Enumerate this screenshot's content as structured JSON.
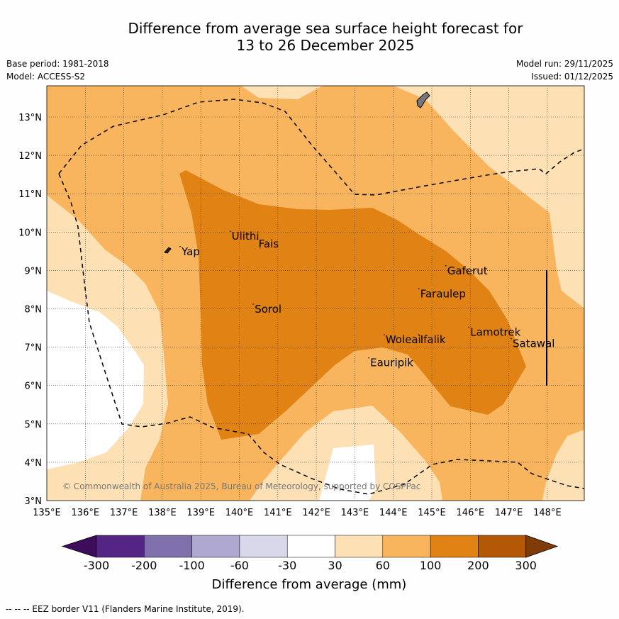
{
  "title": {
    "line1": "Difference from average sea surface height forecast for",
    "line2": "13 to 26 December 2025"
  },
  "meta": {
    "base_period": "Base period: 1981-2018",
    "model": "Model: ACCESS-S2",
    "model_run": "Model run: 29/11/2025",
    "issued": "Issued: 01/12/2025"
  },
  "map": {
    "lon_labels": [
      "135°E",
      "136°E",
      "137°E",
      "138°E",
      "139°E",
      "140°E",
      "141°E",
      "142°E",
      "143°E",
      "144°E",
      "145°E",
      "146°E",
      "147°E",
      "148°E"
    ],
    "lat_labels": [
      "3°N",
      "4°N",
      "5°N",
      "6°N",
      "7°N",
      "8°N",
      "9°N",
      "10°N",
      "11°N",
      "12°N",
      "13°N"
    ],
    "places": [
      {
        "name": "Yap",
        "lon": 138.5,
        "lat": 9.4
      },
      {
        "name": "Ulithi",
        "lon": 139.8,
        "lat": 9.8
      },
      {
        "name": "Fais",
        "lon": 140.5,
        "lat": 9.6
      },
      {
        "name": "Sorol",
        "lon": 140.4,
        "lat": 7.9
      },
      {
        "name": "Gaferut",
        "lon": 145.4,
        "lat": 8.9
      },
      {
        "name": "Faraulep",
        "lon": 144.7,
        "lat": 8.3
      },
      {
        "name": "Woleai",
        "lon": 143.8,
        "lat": 7.1
      },
      {
        "name": "Ifalik",
        "lon": 144.7,
        "lat": 7.1
      },
      {
        "name": "Lamotrek",
        "lon": 146.0,
        "lat": 7.3
      },
      {
        "name": "Satawal",
        "lon": 147.1,
        "lat": 7.0
      },
      {
        "name": "Eauripik",
        "lon": 143.4,
        "lat": 6.5
      }
    ],
    "copyright": "© Commonwealth of Australia 2025, Bureau of Meteorology, supported by COSPPac"
  },
  "colorbar": {
    "tick_labels": [
      "-300",
      "-200",
      "-100",
      "-60",
      "-30",
      "30",
      "60",
      "100",
      "200",
      "300"
    ],
    "colors": [
      "#3d0d5c",
      "#552586",
      "#7f6fab",
      "#afa8d1",
      "#d9d8ea",
      "#ffffff",
      "#fde1b5",
      "#f8b55e",
      "#e08214",
      "#b35806",
      "#7f3b08"
    ],
    "title": "Difference from average (mm)"
  },
  "footer": "--  --  -- EEZ border V11 (Flanders Marine Institute, 2019)."
}
